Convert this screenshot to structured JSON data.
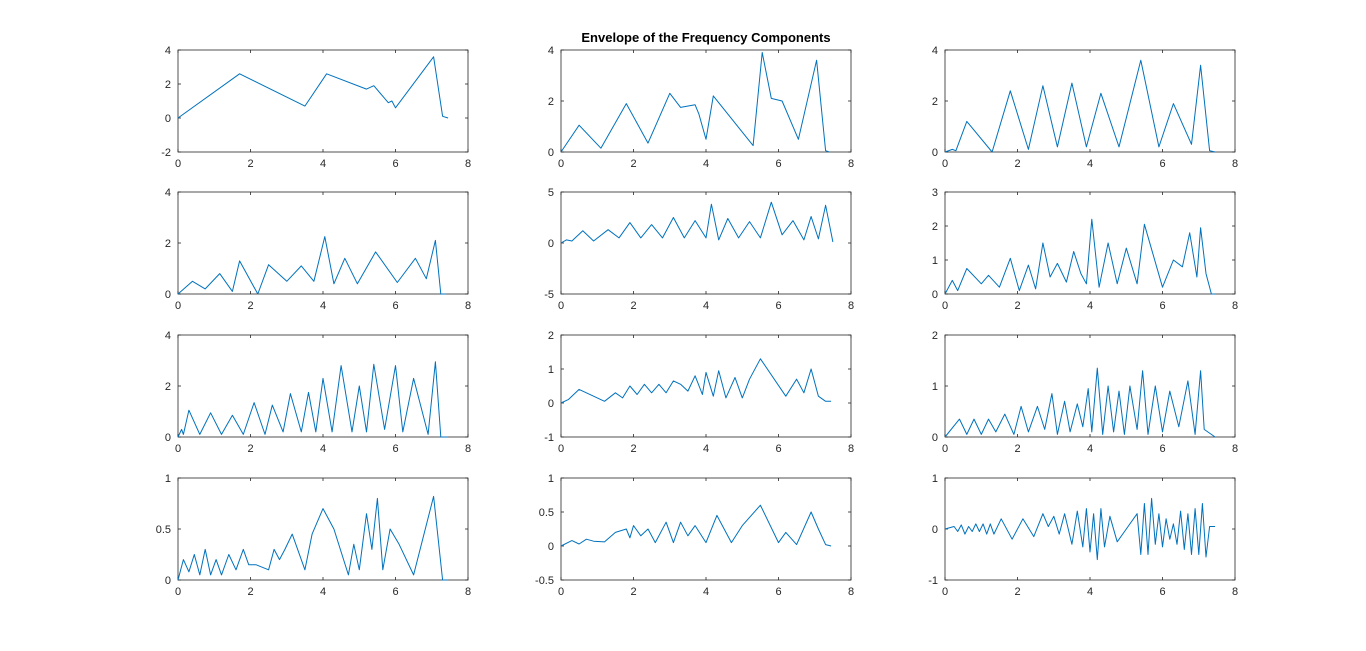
{
  "figure": {
    "title": "Envelope of the Frequency Components",
    "line_color": "#0072BD",
    "axis_color": "#262626"
  },
  "chart_data": [
    {
      "type": "line",
      "xlim": [
        0,
        8
      ],
      "ylim": [
        -2,
        4
      ],
      "xticks": [
        0,
        2,
        4,
        6,
        8
      ],
      "yticks": [
        -2,
        0,
        2,
        4
      ],
      "xticklabels": [
        "0",
        "2",
        "4",
        "6",
        "8"
      ],
      "yticklabels": [
        "-2",
        "0",
        "2",
        "4"
      ],
      "series": [
        {
          "x": [
            0,
            1.7,
            3.5,
            4.1,
            5.2,
            5.4,
            5.8,
            5.9,
            6.0,
            7.05,
            7.3,
            7.45
          ],
          "y": [
            0,
            2.6,
            0.7,
            2.6,
            1.7,
            1.9,
            0.9,
            1.0,
            0.6,
            3.6,
            0.1,
            0
          ]
        }
      ]
    },
    {
      "type": "line",
      "xlim": [
        0,
        8
      ],
      "ylim": [
        0,
        4
      ],
      "xticks": [
        0,
        2,
        4,
        6,
        8
      ],
      "yticks": [
        0,
        2,
        4
      ],
      "xticklabels": [
        "0",
        "2",
        "4",
        "6",
        "8"
      ],
      "yticklabels": [
        "0",
        "2",
        "4"
      ],
      "series": [
        {
          "x": [
            0,
            0.5,
            1.1,
            1.8,
            2.4,
            3.0,
            3.3,
            3.7,
            3.8,
            4.0,
            4.2,
            5.3,
            5.55,
            5.8,
            6.1,
            6.55,
            7.05,
            7.3,
            7.4
          ],
          "y": [
            0,
            1.05,
            0.15,
            1.9,
            0.35,
            2.3,
            1.75,
            1.85,
            1.5,
            0.5,
            2.2,
            0.25,
            3.9,
            2.1,
            2.0,
            0.5,
            3.6,
            0.05,
            0
          ]
        }
      ]
    },
    {
      "type": "line",
      "xlim": [
        0,
        8
      ],
      "ylim": [
        0,
        4
      ],
      "xticks": [
        0,
        2,
        4,
        6,
        8
      ],
      "yticks": [
        0,
        2,
        4
      ],
      "xticklabels": [
        "0",
        "2",
        "4",
        "6",
        "8"
      ],
      "yticklabels": [
        "0",
        "2",
        "4"
      ],
      "series": [
        {
          "x": [
            0,
            0.2,
            0.3,
            0.6,
            1.3,
            1.8,
            2.3,
            2.7,
            3.1,
            3.5,
            3.9,
            4.3,
            4.8,
            5.4,
            5.9,
            6.3,
            6.8,
            7.05,
            7.3,
            7.45
          ],
          "y": [
            0,
            0.1,
            0.05,
            1.2,
            0,
            2.4,
            0.1,
            2.6,
            0.2,
            2.7,
            0.2,
            2.3,
            0.2,
            3.6,
            0.2,
            1.9,
            0.3,
            3.4,
            0.05,
            0
          ]
        }
      ]
    },
    {
      "type": "line",
      "xlim": [
        0,
        8
      ],
      "ylim": [
        0,
        4
      ],
      "xticks": [
        0,
        2,
        4,
        6,
        8
      ],
      "yticks": [
        0,
        2,
        4
      ],
      "xticklabels": [
        "0",
        "2",
        "4",
        "6",
        "8"
      ],
      "yticklabels": [
        "0",
        "2",
        "4"
      ],
      "series": [
        {
          "x": [
            0,
            0.4,
            0.75,
            1.15,
            1.5,
            1.7,
            2.2,
            2.5,
            3.0,
            3.4,
            3.75,
            4.05,
            4.3,
            4.6,
            4.95,
            5.45,
            6.05,
            6.55,
            6.85,
            7.1,
            7.25,
            7.4
          ],
          "y": [
            0,
            0.5,
            0.2,
            0.8,
            0.1,
            1.3,
            0,
            1.15,
            0.5,
            1.1,
            0.5,
            2.25,
            0.4,
            1.4,
            0.4,
            1.65,
            0.45,
            1.4,
            0.6,
            2.1,
            0,
            0
          ]
        }
      ]
    },
    {
      "type": "line",
      "xlim": [
        0,
        8
      ],
      "ylim": [
        -5,
        5
      ],
      "xticks": [
        0,
        2,
        4,
        6,
        8
      ],
      "yticks": [
        -5,
        0,
        5
      ],
      "xticklabels": [
        "0",
        "2",
        "4",
        "6",
        "8"
      ],
      "yticklabels": [
        "-5",
        "0",
        "5"
      ],
      "series": [
        {
          "x": [
            0,
            0.15,
            0.3,
            0.6,
            0.9,
            1.3,
            1.6,
            1.9,
            2.2,
            2.5,
            2.8,
            3.1,
            3.4,
            3.7,
            4.0,
            4.15,
            4.35,
            4.6,
            4.9,
            5.2,
            5.5,
            5.8,
            6.1,
            6.4,
            6.7,
            6.9,
            7.1,
            7.3,
            7.5
          ],
          "y": [
            0,
            0.3,
            0.2,
            1.2,
            0.2,
            1.3,
            0.5,
            2.0,
            0.5,
            1.8,
            0.5,
            2.5,
            0.5,
            2.2,
            0.5,
            3.8,
            0.3,
            2.4,
            0.5,
            2.1,
            0.5,
            4.0,
            0.8,
            2.2,
            0.3,
            2.6,
            0.4,
            3.7,
            0.1
          ]
        }
      ]
    },
    {
      "type": "line",
      "xlim": [
        0,
        8
      ],
      "ylim": [
        0,
        3
      ],
      "xticks": [
        0,
        2,
        4,
        6,
        8
      ],
      "yticks": [
        0,
        1,
        2,
        3
      ],
      "xticklabels": [
        "0",
        "2",
        "4",
        "6",
        "8"
      ],
      "yticklabels": [
        "0",
        "1",
        "2",
        "3"
      ],
      "series": [
        {
          "x": [
            0,
            0.2,
            0.35,
            0.6,
            1.0,
            1.2,
            1.5,
            1.8,
            2.05,
            2.3,
            2.5,
            2.7,
            2.9,
            3.1,
            3.35,
            3.55,
            3.75,
            3.9,
            4.05,
            4.25,
            4.5,
            4.75,
            5.0,
            5.3,
            5.5,
            6.0,
            6.3,
            6.55,
            6.75,
            6.95,
            7.05,
            7.2,
            7.35,
            7.45
          ],
          "y": [
            0,
            0.4,
            0.1,
            0.75,
            0.3,
            0.55,
            0.2,
            1.05,
            0.1,
            0.85,
            0.15,
            1.5,
            0.5,
            0.9,
            0.35,
            1.25,
            0.6,
            0.3,
            2.2,
            0.2,
            1.5,
            0.3,
            1.35,
            0.3,
            2.05,
            0.2,
            1.0,
            0.8,
            1.8,
            0.5,
            1.95,
            0.6,
            0,
            0
          ]
        }
      ]
    },
    {
      "type": "line",
      "xlim": [
        0,
        8
      ],
      "ylim": [
        0,
        4
      ],
      "xticks": [
        0,
        2,
        4,
        6,
        8
      ],
      "yticks": [
        0,
        2,
        4
      ],
      "xticklabels": [
        "0",
        "2",
        "4",
        "6",
        "8"
      ],
      "yticklabels": [
        "0",
        "2",
        "4"
      ],
      "series": [
        {
          "x": [
            0,
            0.1,
            0.15,
            0.3,
            0.6,
            0.9,
            1.2,
            1.5,
            1.8,
            2.1,
            2.4,
            2.6,
            2.9,
            3.1,
            3.4,
            3.6,
            3.8,
            4.0,
            4.25,
            4.5,
            4.8,
            5.0,
            5.2,
            5.4,
            5.7,
            6.0,
            6.2,
            6.5,
            6.9,
            7.1,
            7.25,
            7.45
          ],
          "y": [
            0,
            0.3,
            0.1,
            1.05,
            0.1,
            0.95,
            0.1,
            0.85,
            0.1,
            1.35,
            0.1,
            1.25,
            0.2,
            1.7,
            0.2,
            1.75,
            0.2,
            2.3,
            0.2,
            2.8,
            0.2,
            2.0,
            0.2,
            2.85,
            0.3,
            2.8,
            0.2,
            2.3,
            0.1,
            2.95,
            0,
            0
          ]
        }
      ]
    },
    {
      "type": "line",
      "xlim": [
        0,
        8
      ],
      "ylim": [
        -1,
        2
      ],
      "xticks": [
        0,
        2,
        4,
        6,
        8
      ],
      "yticks": [
        -1,
        0,
        1,
        2
      ],
      "xticklabels": [
        "0",
        "2",
        "4",
        "6",
        "8"
      ],
      "yticklabels": [
        "-1",
        "0",
        "1",
        "2"
      ],
      "series": [
        {
          "x": [
            0,
            0.2,
            0.5,
            0.9,
            1.2,
            1.5,
            1.7,
            1.9,
            2.1,
            2.3,
            2.5,
            2.7,
            2.9,
            3.1,
            3.3,
            3.5,
            3.7,
            3.9,
            4.0,
            4.2,
            4.35,
            4.55,
            4.8,
            5.0,
            5.2,
            5.5,
            6.2,
            6.5,
            6.7,
            6.9,
            7.1,
            7.3,
            7.45
          ],
          "y": [
            0,
            0.1,
            0.4,
            0.2,
            0.05,
            0.3,
            0.15,
            0.5,
            0.25,
            0.55,
            0.3,
            0.55,
            0.3,
            0.65,
            0.55,
            0.35,
            0.8,
            0.25,
            0.9,
            0.2,
            0.95,
            0.15,
            0.75,
            0.15,
            0.7,
            1.3,
            0.2,
            0.7,
            0.3,
            1.0,
            0.2,
            0.05,
            0.05
          ]
        }
      ]
    },
    {
      "type": "line",
      "xlim": [
        0,
        8
      ],
      "ylim": [
        0,
        2
      ],
      "xticks": [
        0,
        2,
        4,
        6,
        8
      ],
      "yticks": [
        0,
        1,
        2
      ],
      "xticklabels": [
        "0",
        "2",
        "4",
        "6",
        "8"
      ],
      "yticklabels": [
        "0",
        "1",
        "2"
      ],
      "series": [
        {
          "x": [
            0,
            0.4,
            0.6,
            0.8,
            1.0,
            1.2,
            1.4,
            1.65,
            1.9,
            2.1,
            2.3,
            2.55,
            2.75,
            2.95,
            3.1,
            3.3,
            3.45,
            3.65,
            3.8,
            3.95,
            4.05,
            4.2,
            4.35,
            4.5,
            4.65,
            4.8,
            4.95,
            5.1,
            5.3,
            5.45,
            5.6,
            5.8,
            6.0,
            6.2,
            6.45,
            6.7,
            6.9,
            7.05,
            7.15,
            7.45
          ],
          "y": [
            0,
            0.35,
            0.05,
            0.35,
            0.05,
            0.35,
            0.1,
            0.45,
            0.05,
            0.6,
            0.1,
            0.6,
            0.15,
            0.85,
            0.05,
            0.7,
            0.1,
            0.65,
            0.2,
            0.95,
            0.1,
            1.35,
            0.05,
            1.0,
            0.1,
            0.9,
            0.05,
            1.0,
            0.15,
            1.3,
            0.05,
            1.0,
            0.1,
            0.9,
            0.2,
            1.1,
            0.05,
            1.3,
            0.15,
            0
          ]
        }
      ]
    },
    {
      "type": "line",
      "xlim": [
        0,
        8
      ],
      "ylim": [
        0,
        1
      ],
      "xticks": [
        0,
        2,
        4,
        6,
        8
      ],
      "yticks": [
        0,
        0.5,
        1
      ],
      "xticklabels": [
        "0",
        "2",
        "4",
        "6",
        "8"
      ],
      "yticklabels": [
        "0",
        "0.5",
        "1"
      ],
      "series": [
        {
          "x": [
            0,
            0.15,
            0.3,
            0.45,
            0.6,
            0.75,
            0.9,
            1.05,
            1.2,
            1.4,
            1.6,
            1.8,
            1.95,
            2.15,
            2.5,
            2.65,
            2.8,
            2.95,
            3.15,
            3.5,
            3.7,
            4.0,
            4.3,
            4.7,
            4.85,
            5.0,
            5.2,
            5.35,
            5.5,
            5.65,
            5.85,
            6.1,
            6.5,
            7.05,
            7.3,
            7.45
          ],
          "y": [
            0,
            0.2,
            0.08,
            0.25,
            0.05,
            0.3,
            0.05,
            0.2,
            0.05,
            0.25,
            0.1,
            0.3,
            0.15,
            0.15,
            0.1,
            0.3,
            0.2,
            0.3,
            0.45,
            0.1,
            0.45,
            0.7,
            0.5,
            0.05,
            0.35,
            0.1,
            0.65,
            0.3,
            0.8,
            0.1,
            0.5,
            0.35,
            0.05,
            0.82,
            0,
            0
          ]
        }
      ]
    },
    {
      "type": "line",
      "xlim": [
        0,
        8
      ],
      "ylim": [
        -0.5,
        1
      ],
      "xticks": [
        0,
        2,
        4,
        6,
        8
      ],
      "yticks": [
        -0.5,
        0,
        0.5,
        1
      ],
      "xticklabels": [
        "0",
        "2",
        "4",
        "6",
        "8"
      ],
      "yticklabels": [
        "-0.5",
        "0",
        "0.5",
        "1"
      ],
      "series": [
        {
          "x": [
            0,
            0.3,
            0.5,
            0.7,
            0.9,
            1.2,
            1.5,
            1.8,
            1.9,
            2.0,
            2.2,
            2.4,
            2.6,
            2.9,
            3.1,
            3.3,
            3.5,
            3.7,
            4.0,
            4.3,
            4.7,
            5.0,
            5.5,
            6.0,
            6.2,
            6.5,
            6.9,
            7.1,
            7.3,
            7.45
          ],
          "y": [
            0,
            0.08,
            0.03,
            0.1,
            0.07,
            0.06,
            0.2,
            0.25,
            0.12,
            0.3,
            0.15,
            0.25,
            0.05,
            0.35,
            0.05,
            0.35,
            0.15,
            0.3,
            0.05,
            0.45,
            0.05,
            0.3,
            0.6,
            0.05,
            0.2,
            0.02,
            0.5,
            0.25,
            0.02,
            0
          ]
        }
      ]
    },
    {
      "type": "line",
      "xlim": [
        0,
        8
      ],
      "ylim": [
        -1,
        1
      ],
      "xticks": [
        0,
        2,
        4,
        6,
        8
      ],
      "yticks": [
        -1,
        0,
        1
      ],
      "xticklabels": [
        "0",
        "2",
        "4",
        "6",
        "8"
      ],
      "yticklabels": [
        "-1",
        "0",
        "1"
      ],
      "series": [
        {
          "x": [
            0,
            0.25,
            0.35,
            0.45,
            0.55,
            0.65,
            0.75,
            0.85,
            0.95,
            1.05,
            1.15,
            1.25,
            1.35,
            1.55,
            1.85,
            2.15,
            2.45,
            2.7,
            2.85,
            3.0,
            3.15,
            3.3,
            3.5,
            3.65,
            3.8,
            3.9,
            4.0,
            4.1,
            4.2,
            4.3,
            4.4,
            4.55,
            4.75,
            5.0,
            5.3,
            5.4,
            5.5,
            5.6,
            5.7,
            5.8,
            5.9,
            6.0,
            6.1,
            6.2,
            6.3,
            6.4,
            6.5,
            6.6,
            6.7,
            6.8,
            6.9,
            7.0,
            7.1,
            7.2,
            7.3,
            7.45
          ],
          "y": [
            0,
            0.05,
            -0.05,
            0.08,
            -0.1,
            0.05,
            -0.05,
            0.1,
            -0.05,
            0.1,
            -0.1,
            0.1,
            -0.1,
            0.2,
            -0.2,
            0.2,
            -0.15,
            0.3,
            0.05,
            0.25,
            -0.1,
            0.3,
            -0.3,
            0.35,
            -0.35,
            0.4,
            -0.45,
            0.3,
            -0.6,
            0.4,
            -0.35,
            0.25,
            -0.25,
            0.0,
            0.3,
            -0.5,
            0.5,
            -0.5,
            0.6,
            -0.3,
            0.3,
            -0.35,
            0.2,
            -0.2,
            0.1,
            -0.3,
            0.35,
            -0.4,
            0.3,
            -0.5,
            0.4,
            -0.5,
            0.5,
            -0.55,
            0.05,
            0.05
          ]
        }
      ]
    }
  ]
}
